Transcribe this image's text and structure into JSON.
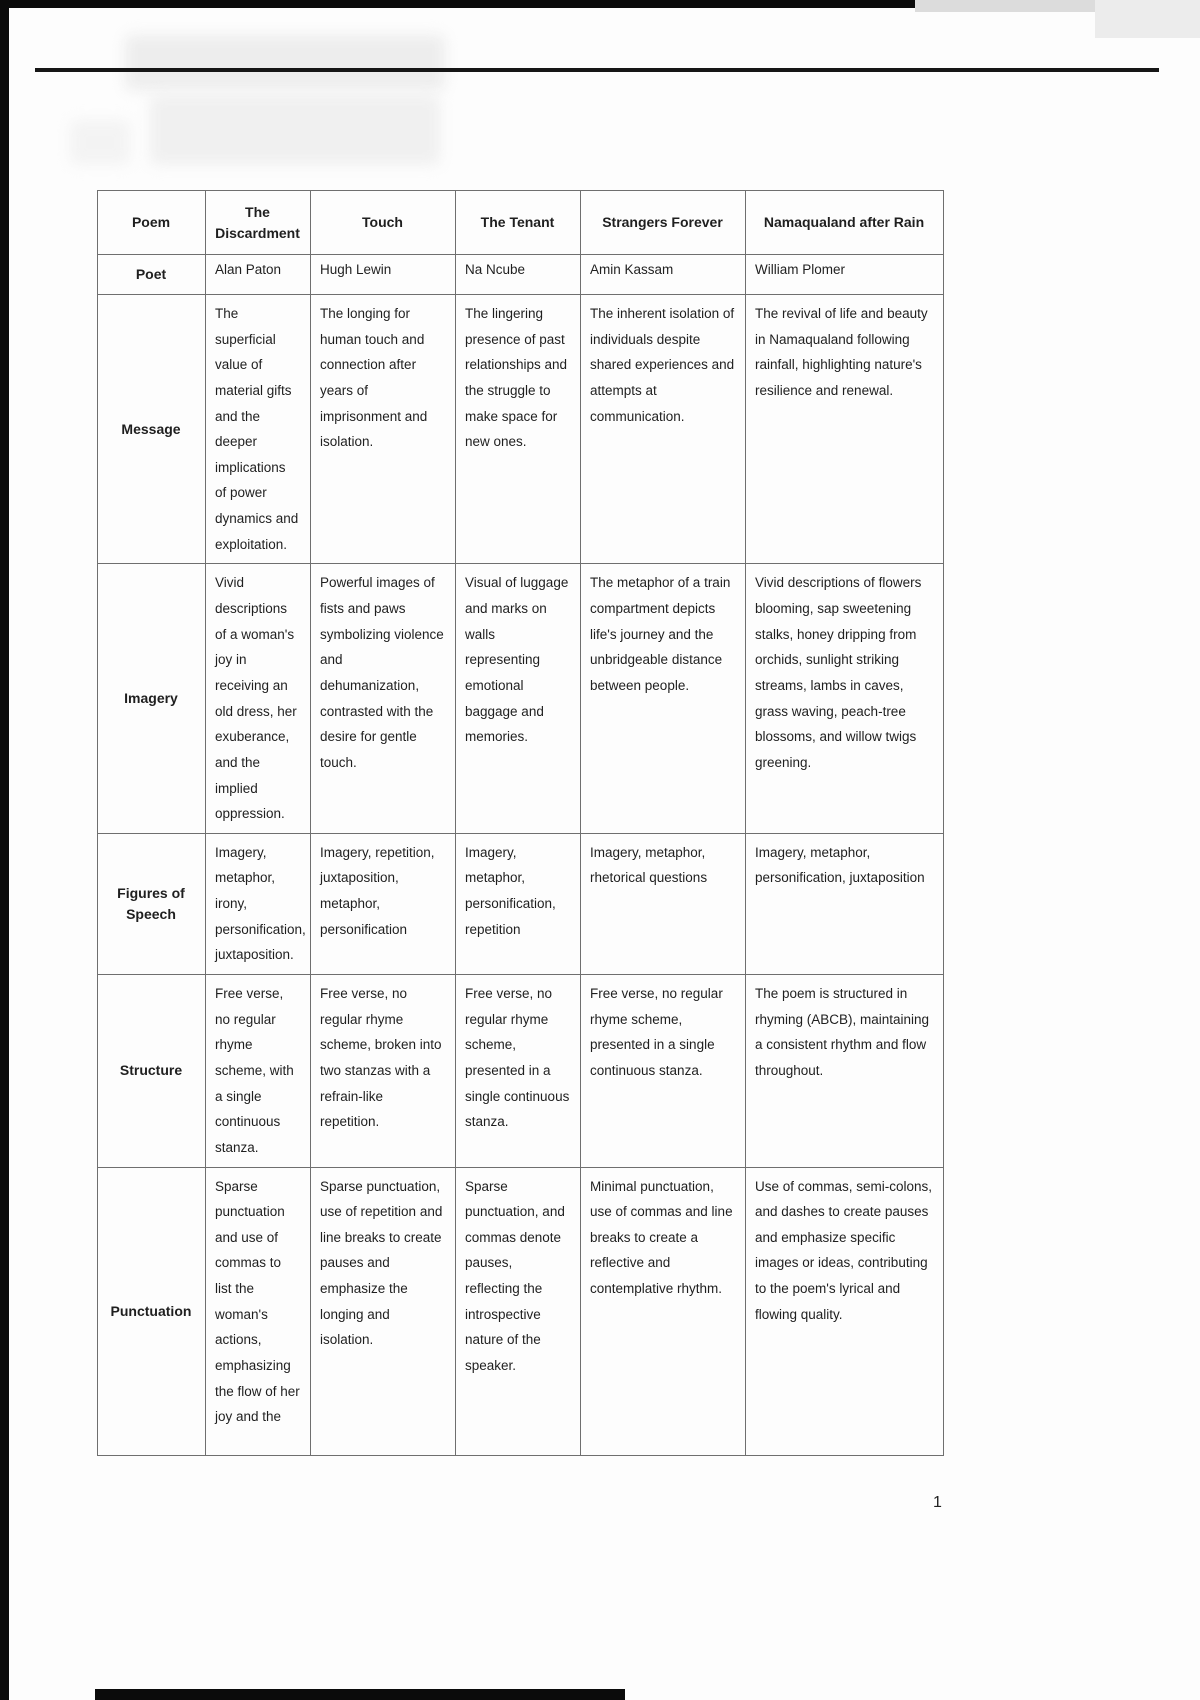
{
  "page": {
    "number": "1"
  },
  "table": {
    "columns": [
      "Poem",
      "The Discardment",
      "Touch",
      "The Tenant",
      "Strangers Forever",
      "Namaqualand after Rain"
    ],
    "rows": [
      {
        "label": "Poet",
        "cells": [
          "Alan Paton",
          "Hugh Lewin",
          "Na Ncube",
          "Amin Kassam",
          "William Plomer"
        ]
      },
      {
        "label": "Message",
        "cells": [
          "The superficial value of material gifts and the deeper implications of power dynamics and exploitation.",
          "The longing for human touch and connection after years of imprisonment and isolation.",
          "The lingering presence of past relationships and the struggle to make space for new ones.",
          "The inherent isolation of individuals despite shared experiences and attempts at communication.",
          "The revival of life and beauty in Namaqualand following rainfall, highlighting nature's resilience and renewal."
        ]
      },
      {
        "label": "Imagery",
        "cells": [
          "Vivid descriptions of a woman's joy in receiving an old dress, her exuberance, and the implied oppression.",
          "Powerful images of fists and paws symbolizing violence and dehumanization, contrasted with the desire for gentle touch.",
          "Visual of luggage and marks on walls representing emotional baggage and memories.",
          "The metaphor of a train compartment depicts life's journey and the unbridgeable distance between people.",
          "Vivid descriptions of flowers blooming, sap sweetening stalks, honey dripping from orchids, sunlight striking streams, lambs in caves, grass waving, peach-tree blossoms, and willow twigs greening."
        ]
      },
      {
        "label": "Figures of Speech",
        "cells": [
          "Imagery, metaphor, irony, personification, juxtaposition.",
          "Imagery, repetition, juxtaposition, metaphor, personification",
          "Imagery, metaphor, personification, repetition",
          "Imagery, metaphor, rhetorical questions",
          "Imagery, metaphor, personification, juxtaposition"
        ]
      },
      {
        "label": "Structure",
        "cells": [
          "Free verse, no regular rhyme scheme, with a single continuous stanza.",
          "Free verse, no regular rhyme scheme, broken into two stanzas with a refrain-like repetition.",
          "Free verse, no regular rhyme scheme, presented in a single continuous stanza.",
          "Free verse, no regular rhyme scheme, presented in a single continuous stanza.",
          "The poem is structured in rhyming (ABCB), maintaining a consistent rhythm and flow throughout."
        ]
      },
      {
        "label": "Punctuation",
        "cells": [
          "Sparse punctuation and use of commas to list the woman's actions, emphasizing the flow of her joy and the",
          "Sparse punctuation, use of repetition and line breaks to create pauses and emphasize the longing and isolation.",
          "Sparse punctuation, and commas denote pauses, reflecting the introspective nature of the speaker.",
          "Minimal punctuation, use of commas and line breaks to create a reflective and contemplative rhythm.",
          "Use of commas, semi-colons, and dashes to create pauses and emphasize specific images or ideas, contributing to the poem's lyrical and flowing quality."
        ]
      }
    ]
  }
}
